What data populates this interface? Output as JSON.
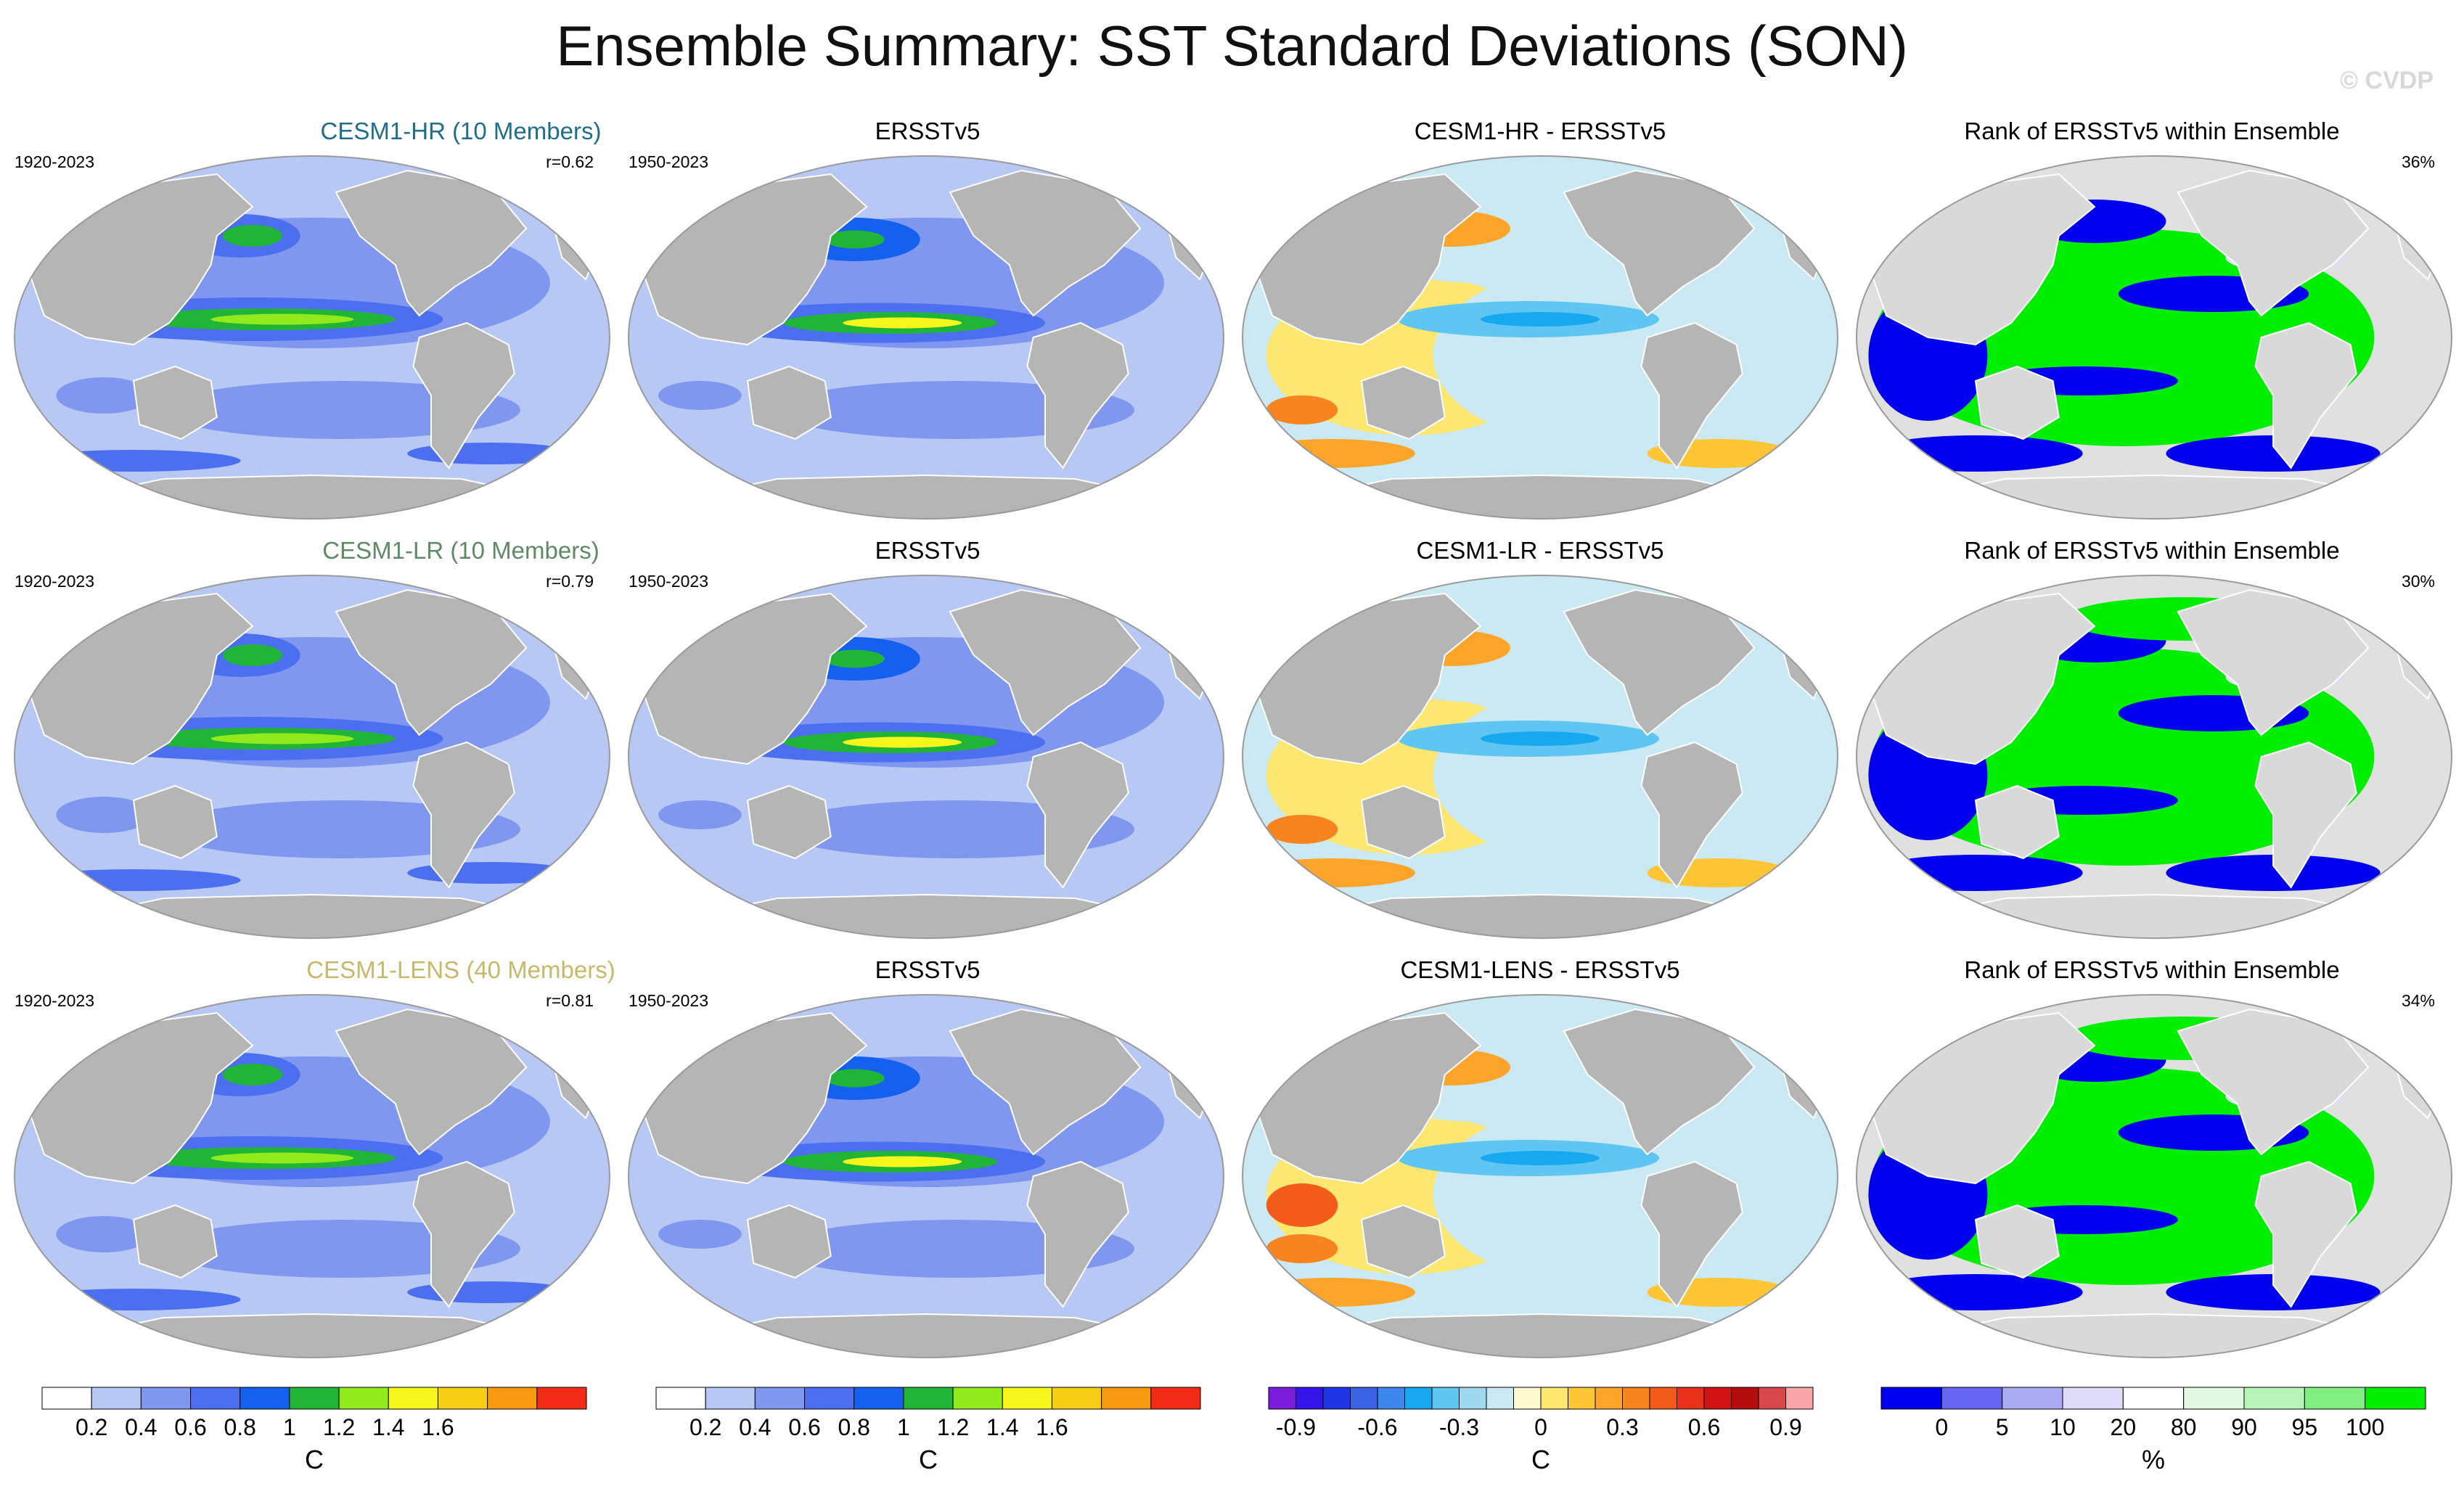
{
  "title": "Ensemble Summary: SST Standard Deviations (SON)",
  "watermark": "© CVDP",
  "colors": {
    "land": "#b5b5b5",
    "coast": "#ffffff",
    "hr_title": "#1f6e8c",
    "lr_title": "#5f8a63",
    "lens_title": "#c8b86a"
  },
  "rows": [
    {
      "model_title": "CESM1-HR (10 Members)",
      "model_period": "1920-2023",
      "correlation": "r=0.62",
      "obs_title": "ERSSTv5",
      "obs_period": "1950-2023",
      "diff_title": "CESM1-HR - ERSSTv5",
      "rank_title": "Rank of ERSSTv5 within Ensemble",
      "rank_pct": "36%"
    },
    {
      "model_title": "CESM1-LR (10 Members)",
      "model_period": "1920-2023",
      "correlation": "r=0.79",
      "obs_title": "ERSSTv5",
      "obs_period": "1950-2023",
      "diff_title": "CESM1-LR - ERSSTv5",
      "rank_title": "Rank of ERSSTv5 within Ensemble",
      "rank_pct": "30%"
    },
    {
      "model_title": "CESM1-LENS (40 Members)",
      "model_period": "1920-2023",
      "correlation": "r=0.81",
      "obs_title": "ERSSTv5",
      "obs_period": "1950-2023",
      "diff_title": "CESM1-LENS - ERSSTv5",
      "rank_title": "Rank of ERSSTv5 within Ensemble",
      "rank_pct": "34%"
    }
  ],
  "chart_data": [
    {
      "type": "heatmap",
      "name": "std-colorbar-model",
      "unit": "C",
      "levels": [
        0.2,
        0.4,
        0.6,
        0.8,
        1,
        1.2,
        1.4,
        1.6
      ],
      "tick_labels": [
        "0.2",
        "0.4",
        "0.6",
        "0.8",
        "1",
        "1.2",
        "1.4",
        "1.6"
      ],
      "colors": [
        "#ffffff",
        "#b8c8f5",
        "#7f97ee",
        "#4c6ff0",
        "#1461f0",
        "#21b538",
        "#92ea1c",
        "#f6f61b",
        "#f8ce14",
        "#f89a12",
        "#f22b17"
      ]
    },
    {
      "type": "heatmap",
      "name": "std-colorbar-obs",
      "unit": "C",
      "levels": [
        0.2,
        0.4,
        0.6,
        0.8,
        1,
        1.2,
        1.4,
        1.6
      ],
      "tick_labels": [
        "0.2",
        "0.4",
        "0.6",
        "0.8",
        "1",
        "1.2",
        "1.4",
        "1.6"
      ],
      "colors": [
        "#ffffff",
        "#b8c8f5",
        "#7f97ee",
        "#4c6ff0",
        "#1461f0",
        "#21b538",
        "#92ea1c",
        "#f6f61b",
        "#f8ce14",
        "#f89a12",
        "#f22b17"
      ]
    },
    {
      "type": "heatmap",
      "name": "difference-colorbar",
      "unit": "C",
      "levels": [
        -0.9,
        -0.6,
        -0.3,
        0,
        0.3,
        0.6,
        0.9
      ],
      "tick_labels": [
        "-0.9",
        "-0.6",
        "-0.3",
        "0",
        "0.3",
        "0.6",
        "0.9"
      ],
      "colors": [
        "#7a1ddc",
        "#3415e8",
        "#1f36e6",
        "#3a62e4",
        "#3d86ee",
        "#18a8f0",
        "#5fc6f2",
        "#9fd9f0",
        "#cbe9f3",
        "#fffbd0",
        "#fee770",
        "#fec535",
        "#fca52a",
        "#f7841f",
        "#f35b1a",
        "#e9311a",
        "#d21313",
        "#b40d0d",
        "#d8474c",
        "#f8a5a9"
      ]
    },
    {
      "type": "heatmap",
      "name": "rank-colorbar",
      "unit": "%",
      "levels": [
        0,
        5,
        10,
        20,
        80,
        90,
        95,
        100
      ],
      "tick_labels": [
        "0",
        "5",
        "10",
        "20",
        "80",
        "90",
        "95",
        "100"
      ],
      "colors": [
        "#0000ee",
        "#6666f2",
        "#aaaaf2",
        "#ddddf9",
        "#ffffff",
        "#e0f9e0",
        "#b8f4b8",
        "#80ee80",
        "#00ee00"
      ]
    }
  ]
}
